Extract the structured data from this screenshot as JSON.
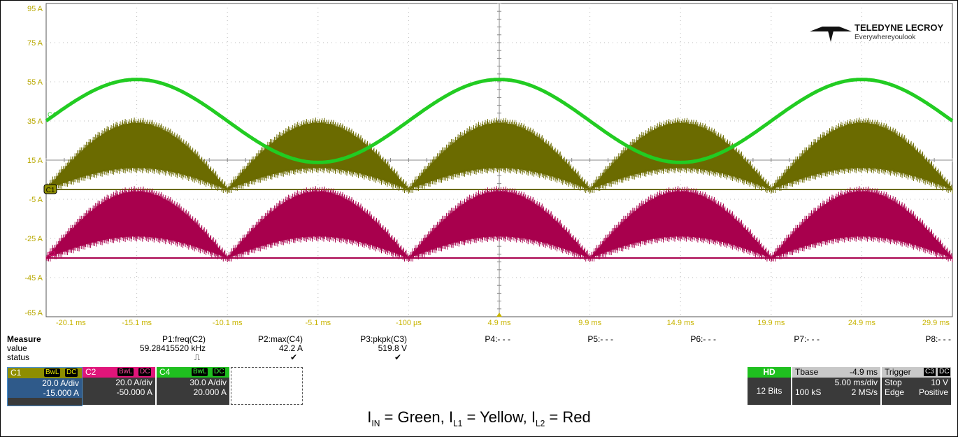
{
  "logo": {
    "brand": "TELEDYNE LECROY",
    "tagline": "Everywhereyoulook"
  },
  "chart_data": {
    "type": "line",
    "x_unit": "ms",
    "xlim": [
      -20.1,
      29.9
    ],
    "ylim": [
      -65,
      95
    ],
    "x_ticks": [
      "-20.1 ms",
      "-15.1 ms",
      "-10.1 ms",
      "-5.1 ms",
      "-100 µs",
      "4.9 ms",
      "9.9 ms",
      "14.9 ms",
      "19.9 ms",
      "24.9 ms",
      "29.9 ms"
    ],
    "y_ticks": [
      "95 A",
      "75 A",
      "55 A",
      "35 A",
      "15 A",
      "-5 A",
      "-25 A",
      "-45 A",
      "-65 A"
    ],
    "channel_markers": {
      "c1": "C1",
      "c2": "C2",
      "c4": "C4"
    },
    "series": [
      {
        "name": "C4",
        "color": "#22cc22",
        "kind": "sine",
        "amplitude_A": 21.2,
        "offset_A": 35.0,
        "period_ms": 20,
        "peak_x_ms": -15.1
      },
      {
        "name": "C1",
        "color": "#6b6b00",
        "kind": "rectified_band",
        "upper_peak_A": 34,
        "lower_peak_A": 11,
        "base_A": 0,
        "half_period_ms": 10,
        "zeros_ms": [
          -20.1,
          -10.1,
          -0.1,
          9.9,
          19.9,
          29.9
        ]
      },
      {
        "name": "C2",
        "color": "#a8004d",
        "kind": "rectified_band",
        "upper_peak_A": -1,
        "lower_peak_A": -24,
        "base_A": -35,
        "half_period_ms": 10,
        "zeros_ms": [
          -20.1,
          -10.1,
          -0.1,
          9.9,
          19.9,
          29.9
        ]
      }
    ]
  },
  "measure": {
    "title": "Measure",
    "row_labels": {
      "value": "value",
      "status": "status"
    },
    "params": [
      {
        "label": "P1:freq(C2)",
        "value": "59.28415520 kHz",
        "status": "⎍"
      },
      {
        "label": "P2:max(C4)",
        "value": "42.2 A",
        "status": "✔"
      },
      {
        "label": "P3:pkpk(C3)",
        "value": "519.8 V",
        "status": "✔"
      },
      {
        "label": "P4:- - -",
        "value": "",
        "status": ""
      },
      {
        "label": "P5:- - -",
        "value": "",
        "status": ""
      },
      {
        "label": "P6:- - -",
        "value": "",
        "status": ""
      },
      {
        "label": "P7:- - -",
        "value": "",
        "status": ""
      },
      {
        "label": "P8:- - -",
        "value": "",
        "status": ""
      }
    ]
  },
  "channels": [
    {
      "name": "C1",
      "tags": [
        "BwL",
        "DC"
      ],
      "scale": "20.0 A/div",
      "offset": "-15.000 A"
    },
    {
      "name": "C2",
      "tags": [
        "BwL",
        "DC"
      ],
      "scale": "20.0 A/div",
      "offset": "-50.000 A"
    },
    {
      "name": "C4",
      "tags": [
        "BwL",
        "DC"
      ],
      "scale": "30.0 A/div",
      "offset": "20.000 A"
    }
  ],
  "hd": {
    "label": "HD",
    "bits": "12 Bits"
  },
  "timebase": {
    "label": "Tbase",
    "delay": "-4.9 ms",
    "scale": "5.00 ms/div",
    "samples": "100 kS",
    "rate": "2 MS/s"
  },
  "trigger": {
    "label": "Trigger",
    "tags": [
      "C3",
      "DC"
    ],
    "mode": "Stop",
    "level": "10 V",
    "type": "Edge",
    "slope": "Positive"
  },
  "caption": {
    "in_label": "I",
    "in_sub": "IN",
    "in_text": " = Green, ",
    "l1_label": "I",
    "l1_sub": "L1",
    "l1_text": " = Yellow, ",
    "l2_label": "I",
    "l2_sub": "L2",
    "l2_text": " = Red"
  }
}
